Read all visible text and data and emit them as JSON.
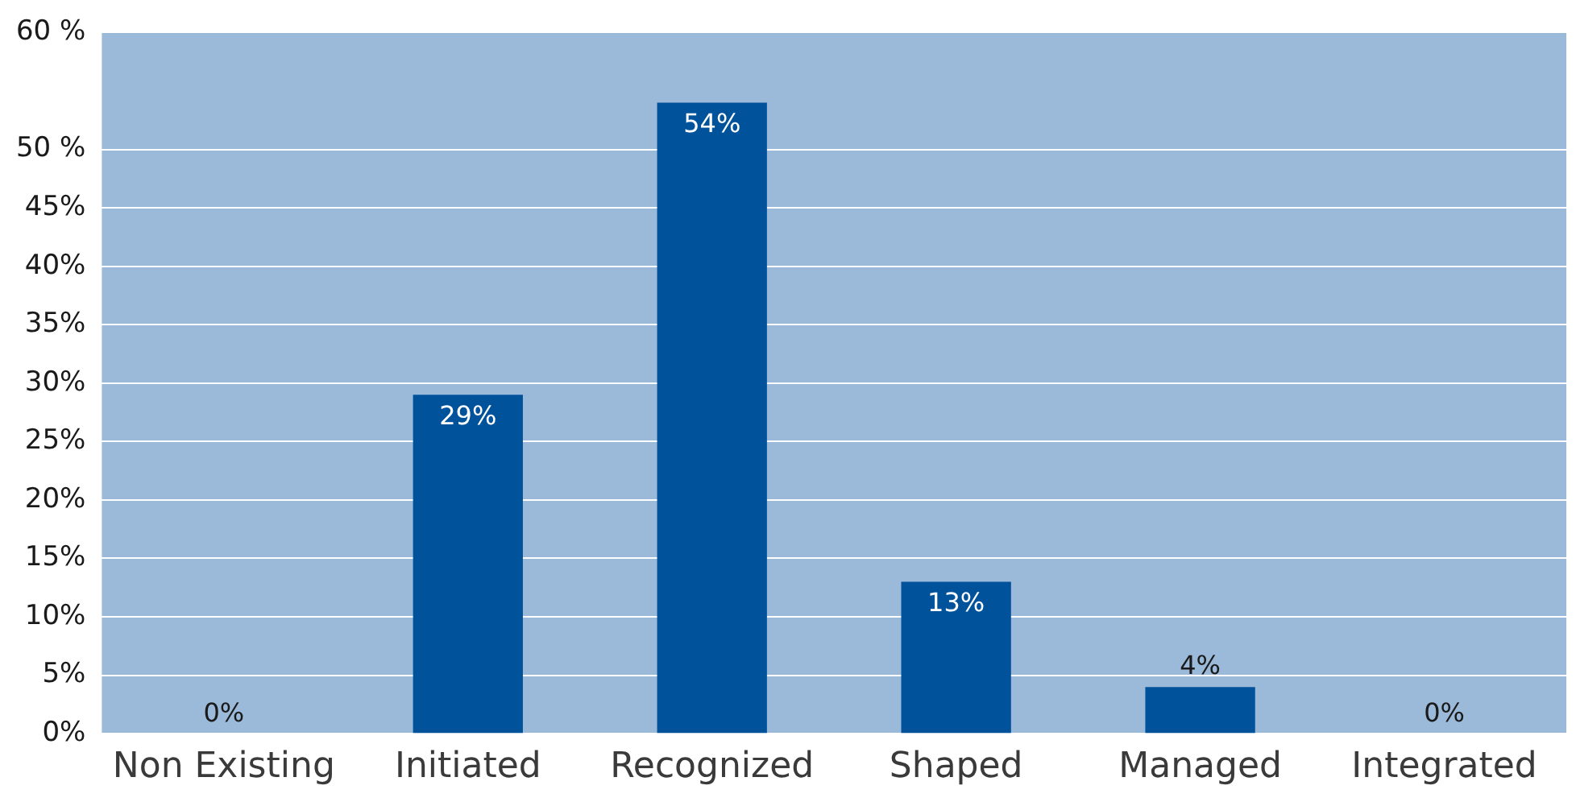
{
  "chart_data": {
    "type": "bar",
    "categories": [
      "Non Existing",
      "Initiated",
      "Recognized",
      "Shaped",
      "Managed",
      "Integrated"
    ],
    "values": [
      0,
      29,
      54,
      13,
      4,
      0
    ],
    "color": "#00529b",
    "ylim": [
      0,
      60
    ],
    "yticks": [
      {
        "value": 0,
        "label": "0%"
      },
      {
        "value": 5,
        "label": "5%"
      },
      {
        "value": 10,
        "label": "10%"
      },
      {
        "value": 15,
        "label": "15%"
      },
      {
        "value": 20,
        "label": "20%"
      },
      {
        "value": 25,
        "label": "25%"
      },
      {
        "value": 30,
        "label": "30%"
      },
      {
        "value": 35,
        "label": "35%"
      },
      {
        "value": 40,
        "label": "40%"
      },
      {
        "value": 45,
        "label": "45%"
      },
      {
        "value": 50,
        "label": "50 %"
      },
      {
        "value": 60,
        "label": "60 %"
      }
    ],
    "value_labels": [
      "0%",
      "29%",
      "54%",
      "13%",
      "4%",
      "0%"
    ],
    "grid": "y",
    "legend": false
  }
}
